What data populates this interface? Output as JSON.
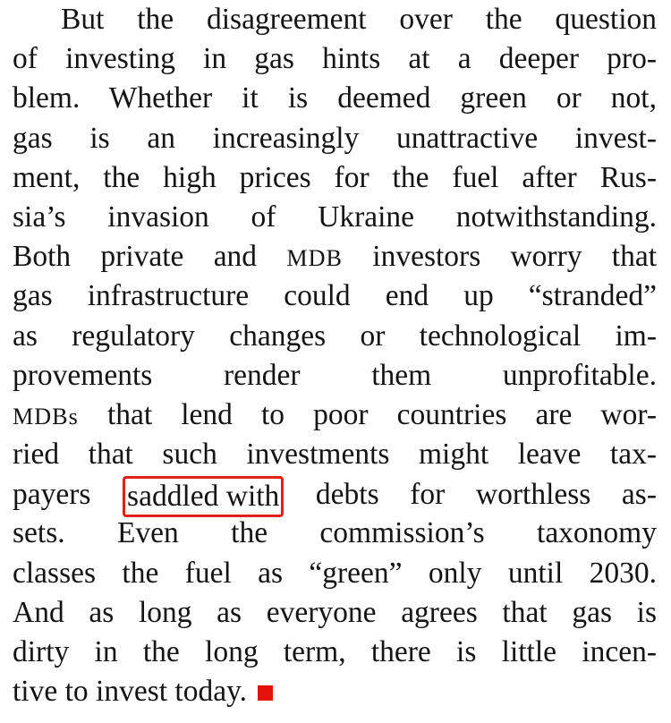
{
  "article": {
    "lines": [
      "But the disagreement over the question",
      "of investing in gas hints at a deeper pro-",
      "blem. Whether it is deemed green or not,",
      "gas is an increasingly unattractive invest-",
      "ment, the high prices for the fuel after Rus-",
      "sia’s invasion of Ukraine notwithstanding.",
      "",
      "gas infrastructure could end up “stranded”",
      "as regulatory changes or technological im-",
      "provements render them unprofitable.",
      "",
      "ried that such investments might leave tax-",
      "",
      "sets. Even the commission’s taxonomy",
      "classes the fuel as “green” only until 2030.",
      "And as long as everyone agrees that gas is",
      "dirty in the long term, there is little incen-",
      "tive to invest today."
    ],
    "line7": {
      "before": "Both private and",
      "abbr": "MDB",
      "after": "investors worry that"
    },
    "line11": {
      "abbr": "MDBs",
      "after": "that lend to poor countries are wor-"
    },
    "line13": {
      "before": "payers",
      "highlight": "saddled with",
      "after": "debts for worthless as-"
    },
    "highlight_color": "#e0201c",
    "end_mark_color": "#e3120b"
  }
}
